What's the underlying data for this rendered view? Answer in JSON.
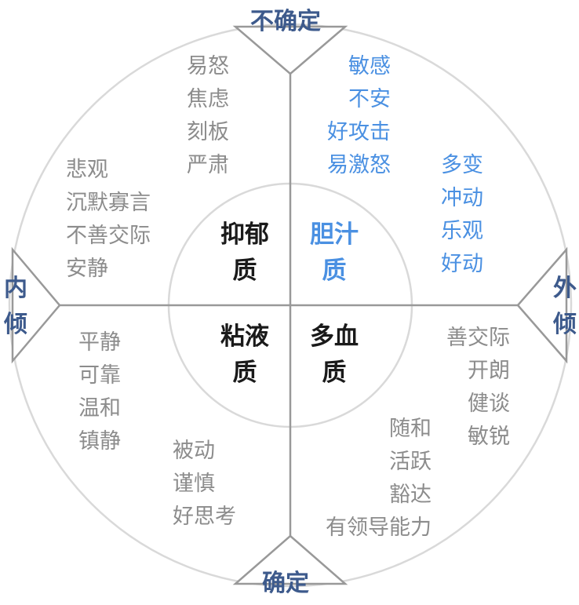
{
  "axes": {
    "top": "不确定",
    "bottom": "确定",
    "left": [
      "内",
      "倾"
    ],
    "right": [
      "外",
      "倾"
    ]
  },
  "temperaments": {
    "melancholic": [
      "抑郁",
      "质"
    ],
    "choleric": [
      "胆汁",
      "质"
    ],
    "phlegmatic": [
      "粘液",
      "质"
    ],
    "sanguine": [
      "多血",
      "质"
    ]
  },
  "traits": {
    "upper_left_inner": [
      "易怒",
      "焦虑",
      "刻板",
      "严肃"
    ],
    "upper_left_outer": [
      "悲观",
      "沉默寡言",
      "不善交际",
      "安静"
    ],
    "upper_right_inner": [
      "敏感",
      "不安",
      "好攻击",
      "易激怒"
    ],
    "upper_right_outer": [
      "多变",
      "冲动",
      "乐观",
      "好动"
    ],
    "lower_left_outer": [
      "平静",
      "可靠",
      "温和",
      "镇静"
    ],
    "lower_left_inner": [
      "被动",
      "谨慎",
      "好思考"
    ],
    "lower_right_outer": [
      "善交际",
      "开朗",
      "健谈",
      "敏锐"
    ],
    "lower_right_inner": [
      "随和",
      "活跃",
      "豁达",
      "有领导能力"
    ]
  },
  "colors": {
    "blue": "#4a90e2",
    "axis_label": "#3d5a8c",
    "gray_text": "#8c8c8c",
    "core_text": "#1a1a1a",
    "circle_stroke": "#d9d9d9",
    "divider": "#999999"
  }
}
